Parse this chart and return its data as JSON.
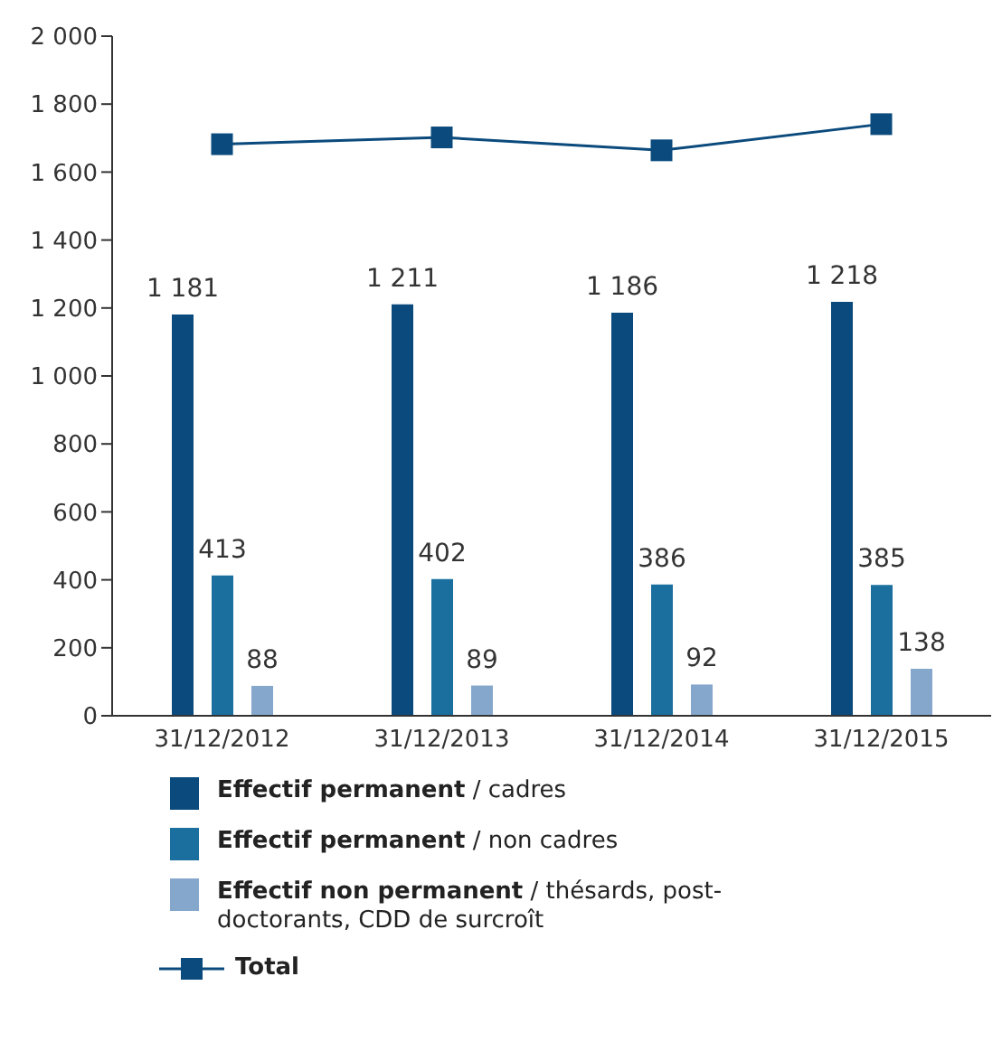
{
  "chart_data": {
    "type": "bar",
    "categories": [
      "31/12/2012",
      "31/12/2013",
      "31/12/2014",
      "31/12/2015"
    ],
    "series": [
      {
        "name": "Effectif permanent / cadres",
        "color": "#0b4a7c",
        "values": [
          1181,
          1211,
          1186,
          1218
        ],
        "value_labels": [
          "1 181",
          "1 211",
          "1 186",
          "1 218"
        ]
      },
      {
        "name": "Effectif permanent / non cadres",
        "color": "#1a6f9e",
        "values": [
          413,
          402,
          386,
          385
        ],
        "value_labels": [
          "413",
          "402",
          "386",
          "385"
        ]
      },
      {
        "name": "Effectif non permanent / thésards, post-doctorants, CDD de surcroît",
        "color": "#85a7cc",
        "values": [
          88,
          89,
          92,
          138
        ],
        "value_labels": [
          "88",
          "89",
          "92",
          "138"
        ]
      },
      {
        "name": "Total",
        "type": "line",
        "color": "#0b4a7c",
        "values": [
          1682,
          1702,
          1664,
          1741
        ]
      }
    ],
    "ylim": [
      0,
      2000
    ],
    "yticks": [
      0,
      {
        "value": 200,
        "label": "200"
      },
      {
        "value": 400,
        "label": "400"
      },
      {
        "value": 600,
        "label": "600"
      },
      {
        "value": 800,
        "label": "800"
      },
      {
        "value": 1000,
        "label": "1 000"
      },
      {
        "value": 1200,
        "label": "1 200"
      },
      {
        "value": 1400,
        "label": "1 400"
      },
      {
        "value": 1600,
        "label": "1 600"
      },
      {
        "value": 1800,
        "label": "1 800"
      },
      {
        "value": 2000,
        "label": "2 000"
      }
    ],
    "grid": false,
    "legend": "bottom",
    "marker": "square"
  }
}
